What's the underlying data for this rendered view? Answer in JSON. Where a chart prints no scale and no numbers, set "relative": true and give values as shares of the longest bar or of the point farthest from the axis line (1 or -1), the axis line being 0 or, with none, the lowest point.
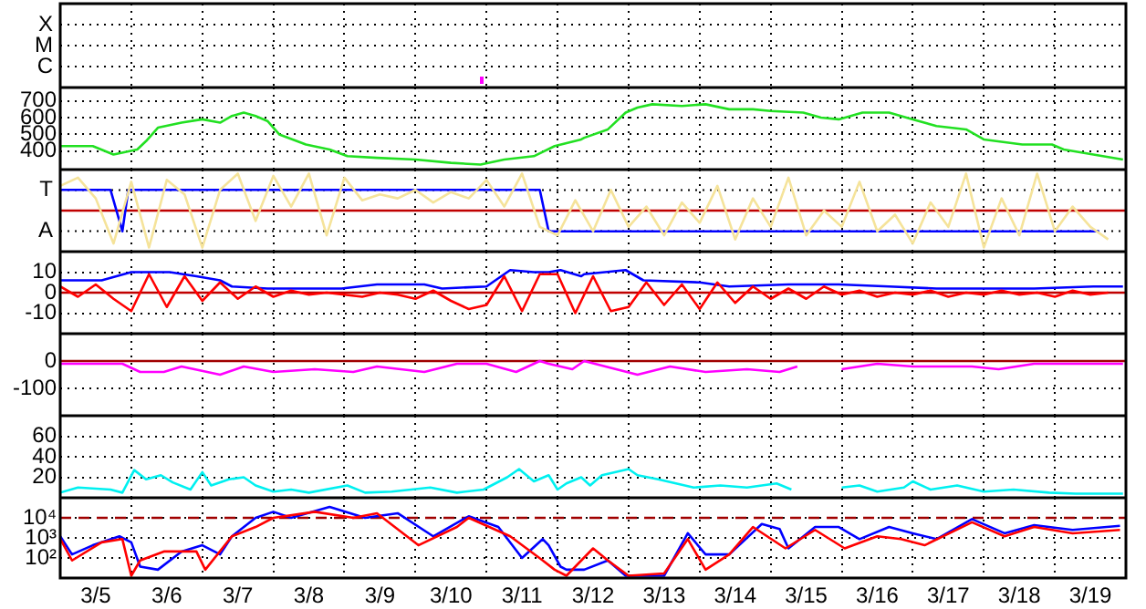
{
  "chart_data": [
    {
      "type": "other",
      "annotations": [
        "X",
        "M",
        "C"
      ]
    },
    {
      "type": "line",
      "grid": true,
      "tick_labels": "y",
      "xlim": [
        "--03-05",
        "--03-20"
      ],
      "ylim": [
        290,
        780
      ],
      "xticks": [
        {
          "value": "--03-06",
          "label": null
        },
        {
          "value": "--03-07",
          "label": null
        },
        {
          "value": "--03-08",
          "label": null
        },
        {
          "value": "--03-09",
          "label": null
        },
        {
          "value": "--03-10",
          "label": null
        },
        {
          "value": "--03-11",
          "label": null
        },
        {
          "value": "--03-12",
          "label": null
        },
        {
          "value": "--03-13",
          "label": null
        },
        {
          "value": "--03-14",
          "label": null
        },
        {
          "value": "--03-15",
          "label": null
        },
        {
          "value": "--03-16",
          "label": null
        },
        {
          "value": "--03-17",
          "label": null
        },
        {
          "value": "--03-18",
          "label": null
        },
        {
          "value": "--03-19",
          "label": null
        }
      ],
      "yticks": [
        400,
        500,
        600,
        700
      ],
      "series": [
        {
          "color": "#22e022",
          "x": [
            "--03-05T00:00",
            "--03-05T11:00",
            "--03-05T18:00",
            "--03-06T02:00",
            "--03-06T05:00",
            "--03-06T09:00",
            "--03-06T17:00",
            "--03-07T00:00",
            "--03-07T06:00",
            "--03-07T10:00",
            "--03-07T14:00",
            "--03-07T18:00",
            "--03-07T22:00",
            "--03-08T02:00",
            "--03-08T11:00",
            "--03-08T19:00",
            "--03-09T01:00",
            "--03-09T11:00",
            "--03-10T00:00",
            "--03-10T12:00",
            "--03-10T22:00",
            "--03-11T06:00",
            "--03-11T16:00",
            "--03-11T23:00",
            "--03-12T08:00",
            "--03-12T09:00",
            "--03-12T17:00",
            "--03-12T23:00",
            "--03-13T03:00",
            "--03-13T08:00",
            "--03-13T18:00",
            "--03-14T02:00",
            "--03-14T10:00",
            "--03-14T18:00",
            "--03-15T00:00",
            "--03-15T11:00",
            "--03-15T17:00",
            "--03-15T23:00",
            "--03-16T07:00",
            "--03-16T16:00",
            "--03-17T00:00",
            "--03-17T08:00",
            "--03-17T18:00",
            "--03-18T00:00",
            "--03-18T13:00",
            "--03-18T23:00",
            "--03-19T03:00",
            "--03-19T13:00",
            "--03-19T23:00"
          ],
          "values": [
            430,
            430,
            380,
            410,
            460,
            540,
            570,
            590,
            570,
            610,
            630,
            610,
            580,
            500,
            440,
            410,
            370,
            360,
            350,
            330,
            320,
            350,
            370,
            430,
            470,
            480,
            530,
            630,
            660,
            680,
            670,
            680,
            650,
            650,
            640,
            630,
            600,
            590,
            630,
            630,
            590,
            550,
            530,
            470,
            440,
            440,
            410,
            380,
            350
          ]
        }
      ]
    },
    {
      "type": "line",
      "relative": true,
      "grid": true,
      "tick_labels": false,
      "xlim": [
        "--03-05",
        "--03-20"
      ],
      "xticks": [
        {
          "value": "--03-06",
          "label": null
        },
        {
          "value": "--03-07",
          "label": null
        },
        {
          "value": "--03-08",
          "label": null
        },
        {
          "value": "--03-09",
          "label": null
        },
        {
          "value": "--03-10",
          "label": null
        },
        {
          "value": "--03-11",
          "label": null
        },
        {
          "value": "--03-12",
          "label": null
        },
        {
          "value": "--03-13",
          "label": null
        },
        {
          "value": "--03-14",
          "label": null
        },
        {
          "value": "--03-15",
          "label": null
        },
        {
          "value": "--03-16",
          "label": null
        },
        {
          "value": "--03-17",
          "label": null
        },
        {
          "value": "--03-18",
          "label": null
        },
        {
          "value": "--03-19",
          "label": null
        }
      ],
      "annotations": [
        "T",
        "A"
      ],
      "ref_lines": [
        {
          "axis": "y",
          "value": 0,
          "color": "#c00000"
        }
      ],
      "series": [
        {
          "color": "#f5e39a",
          "x": [
            "--03-05T00:00",
            "--03-05T06:00",
            "--03-05T12:00",
            "--03-05T18:00",
            "--03-06T00:00",
            "--03-06T06:00",
            "--03-06T12:00",
            "--03-06T18:00",
            "--03-07T00:00",
            "--03-07T06:00",
            "--03-07T12:00",
            "--03-07T18:00",
            "--03-08T00:00",
            "--03-08T06:00",
            "--03-08T12:00",
            "--03-08T18:00",
            "--03-09T00:00",
            "--03-09T06:00",
            "--03-09T12:00",
            "--03-09T18:00",
            "--03-10T00:00",
            "--03-10T06:00",
            "--03-10T12:00",
            "--03-10T18:00",
            "--03-11T00:00",
            "--03-11T06:00",
            "--03-11T12:00",
            "--03-11T18:00",
            "--03-12T00:00",
            "--03-12T06:00",
            "--03-12T12:00",
            "--03-12T18:00",
            "--03-13T00:00",
            "--03-13T06:00",
            "--03-13T12:00",
            "--03-13T18:00",
            "--03-14T00:00",
            "--03-14T06:00",
            "--03-14T12:00",
            "--03-14T18:00",
            "--03-15T00:00",
            "--03-15T06:00",
            "--03-15T12:00",
            "--03-15T18:00",
            "--03-16T00:00",
            "--03-16T06:00",
            "--03-16T12:00",
            "--03-16T18:00",
            "--03-17T00:00",
            "--03-17T06:00",
            "--03-17T12:00",
            "--03-17T18:00",
            "--03-18T00:00",
            "--03-18T06:00",
            "--03-18T12:00",
            "--03-18T18:00",
            "--03-19T00:00",
            "--03-19T06:00",
            "--03-19T12:00",
            "--03-19T18:00"
          ],
          "values": [
            0.67,
            0.89,
            0.33,
            -0.89,
            0.78,
            -1,
            0.83,
            0.44,
            -1,
            0.56,
            1,
            -0.28,
            0.94,
            0.11,
            1,
            -0.67,
            0.89,
            0.28,
            0.44,
            0.33,
            0.56,
            0.22,
            0.5,
            0.33,
            0.83,
            0.11,
            1,
            -0.44,
            -0.67,
            0.28,
            -0.56,
            0.56,
            -0.44,
            0.11,
            -0.67,
            0.22,
            -0.33,
            0.67,
            -0.78,
            0.33,
            -0.44,
            0.89,
            -0.67,
            0,
            -0.44,
            0.78,
            -0.56,
            -0.11,
            -0.89,
            0.22,
            -0.44,
            1,
            -1,
            0.33,
            -0.67,
            1,
            -0.56,
            0.11,
            -0.44,
            -0.78
          ]
        },
        {
          "color": "#0000ff",
          "x": [
            "--03-05T00:00",
            "--03-05T17:00",
            "--03-05T21:00",
            "--03-05T23:00",
            "--03-11T18:00",
            "--03-11T21:00",
            "--03-19T15:00"
          ],
          "values": [
            0.56,
            0.56,
            -0.56,
            0.56,
            0.56,
            -0.56,
            -0.56
          ]
        }
      ]
    },
    {
      "type": "line",
      "grid": true,
      "tick_labels": "y",
      "xlim": [
        "--03-05",
        "--03-20"
      ],
      "ylim": [
        -20,
        20
      ],
      "xticks": [
        {
          "value": "--03-06",
          "label": null
        },
        {
          "value": "--03-07",
          "label": null
        },
        {
          "value": "--03-08",
          "label": null
        },
        {
          "value": "--03-09",
          "label": null
        },
        {
          "value": "--03-10",
          "label": null
        },
        {
          "value": "--03-11",
          "label": null
        },
        {
          "value": "--03-12",
          "label": null
        },
        {
          "value": "--03-13",
          "label": null
        },
        {
          "value": "--03-14",
          "label": null
        },
        {
          "value": "--03-15",
          "label": null
        },
        {
          "value": "--03-16",
          "label": null
        },
        {
          "value": "--03-17",
          "label": null
        },
        {
          "value": "--03-18",
          "label": null
        },
        {
          "value": "--03-19",
          "label": null
        }
      ],
      "yticks": [
        -10,
        0,
        10
      ],
      "ref_lines": [
        {
          "axis": "y",
          "value": 0,
          "color": "#c00000"
        }
      ],
      "series": [
        {
          "color": "#ff0000",
          "x": [
            "--03-05T00:00",
            "--03-05T06:00",
            "--03-05T12:00",
            "--03-05T18:00",
            "--03-06T00:00",
            "--03-06T06:00",
            "--03-06T12:00",
            "--03-06T18:00",
            "--03-07T00:00",
            "--03-07T06:00",
            "--03-07T12:00",
            "--03-07T18:00",
            "--03-08T00:00",
            "--03-08T06:00",
            "--03-08T12:00",
            "--03-08T18:00",
            "--03-09T00:00",
            "--03-09T06:00",
            "--03-09T12:00",
            "--03-09T18:00",
            "--03-10T00:00",
            "--03-10T06:00",
            "--03-10T12:00",
            "--03-10T18:00",
            "--03-11T00:00",
            "--03-11T06:00",
            "--03-11T12:00",
            "--03-11T18:00",
            "--03-12T00:00",
            "--03-12T06:00",
            "--03-12T12:00",
            "--03-12T18:00",
            "--03-13T00:00",
            "--03-13T06:00",
            "--03-13T12:00",
            "--03-13T18:00",
            "--03-14T00:00",
            "--03-14T06:00",
            "--03-14T12:00",
            "--03-14T18:00",
            "--03-15T00:00",
            "--03-15T06:00",
            "--03-15T12:00",
            "--03-15T18:00",
            "--03-16T00:00",
            "--03-16T06:00",
            "--03-16T12:00",
            "--03-16T18:00",
            "--03-17T00:00",
            "--03-17T06:00",
            "--03-17T12:00",
            "--03-17T18:00",
            "--03-18T00:00",
            "--03-18T06:00",
            "--03-18T12:00",
            "--03-18T18:00",
            "--03-19T00:00",
            "--03-19T06:00",
            "--03-19T12:00",
            "--03-19T18:00"
          ],
          "values": [
            3,
            -2,
            4,
            -3,
            -9,
            9,
            -7,
            8,
            -4,
            5,
            -3,
            3,
            -2,
            1,
            -1,
            0,
            -1,
            -2,
            0,
            -1,
            -3,
            1,
            -4,
            -8,
            -6,
            8,
            -9,
            9,
            9,
            -10,
            8,
            -9,
            -7,
            5,
            -6,
            4,
            -8,
            5,
            -5,
            3,
            -3,
            2,
            -3,
            3,
            -1,
            1,
            -2,
            0,
            -1,
            1,
            -2,
            0,
            -1,
            1,
            -1,
            0,
            -2,
            1,
            -1,
            0
          ]
        },
        {
          "color": "#0000ff",
          "x": [
            "--03-05T00:00",
            "--03-05T14:00",
            "--03-06T00:00",
            "--03-06T05:00",
            "--03-06T13:00",
            "--03-06T22:00",
            "--03-07T06:00",
            "--03-07T10:00",
            "--03-07T22:00",
            "--03-08T06:00",
            "--03-08T23:00",
            "--03-09T11:00",
            "--03-10T03:00",
            "--03-10T09:00",
            "--03-11T00:00",
            "--03-11T08:00",
            "--03-11T16:00",
            "--03-11T21:00",
            "--03-12T01:00",
            "--03-12T08:00",
            "--03-12T09:00",
            "--03-12T23:00",
            "--03-13T05:00",
            "--03-14T00:00",
            "--03-14T10:00",
            "--03-15T06:00",
            "--03-15T23:00",
            "--03-16T16:00",
            "--03-17T08:00",
            "--03-18T00:00",
            "--03-18T17:00",
            "--03-19T13:00",
            "--03-19T23:00"
          ],
          "values": [
            6,
            6,
            10,
            10,
            10,
            8,
            6,
            3,
            2,
            2,
            2,
            4,
            4,
            2,
            3,
            11,
            10,
            10,
            11,
            8,
            9,
            11,
            6,
            5,
            3,
            4,
            4,
            3,
            2,
            2,
            2,
            3,
            3
          ]
        }
      ]
    },
    {
      "type": "line",
      "grid": true,
      "tick_labels": "y",
      "xlim": [
        "--03-05",
        "--03-20"
      ],
      "ylim": [
        -200,
        100
      ],
      "xticks": [
        {
          "value": "--03-06",
          "label": null
        },
        {
          "value": "--03-07",
          "label": null
        },
        {
          "value": "--03-08",
          "label": null
        },
        {
          "value": "--03-09",
          "label": null
        },
        {
          "value": "--03-10",
          "label": null
        },
        {
          "value": "--03-11",
          "label": null
        },
        {
          "value": "--03-12",
          "label": null
        },
        {
          "value": "--03-13",
          "label": null
        },
        {
          "value": "--03-14",
          "label": null
        },
        {
          "value": "--03-15",
          "label": null
        },
        {
          "value": "--03-16",
          "label": null
        },
        {
          "value": "--03-17",
          "label": null
        },
        {
          "value": "--03-18",
          "label": null
        },
        {
          "value": "--03-19",
          "label": null
        }
      ],
      "yticks": [
        -100,
        0
      ],
      "ref_lines": [
        {
          "axis": "y",
          "value": 0,
          "color": "#a00000"
        }
      ],
      "series": [
        {
          "color": "#ff00ff",
          "x": [
            "--03-05T00:00",
            "--03-05T21:00",
            "--03-06T03:00",
            "--03-06T11:00",
            "--03-06T17:00",
            "--03-07T06:00",
            "--03-07T14:00",
            "--03-08T00:00",
            "--03-08T14:00",
            "--03-09T03:00",
            "--03-09T11:00",
            "--03-10T03:00",
            "--03-10T14:00",
            "--03-11T00:00",
            "--03-11T10:00",
            "--03-11T18:00",
            "--03-11T21:00",
            "--03-12T05:00",
            "--03-12T09:00",
            "--03-13T03:00",
            "--03-13T14:00",
            "--03-14T02:00",
            "--03-14T16:00",
            "--03-15T03:00",
            "--03-15T09:00",
            "--03-15T17:00",
            "--03-16T00:00",
            "--03-16T12:00",
            "--03-17T00:00",
            "--03-17T20:00",
            "--03-18T05:00",
            "--03-18T17:00",
            "--03-19T03:00",
            "--03-19T23:00"
          ],
          "values": [
            -10,
            -10,
            -40,
            -40,
            -20,
            -50,
            -20,
            -40,
            -30,
            -40,
            -20,
            -40,
            -10,
            -10,
            -40,
            0,
            -10,
            -30,
            0,
            -50,
            -20,
            -40,
            -30,
            -40,
            -20,
            null,
            -30,
            -10,
            -20,
            -20,
            -30,
            -10,
            -10,
            -10
          ]
        }
      ]
    },
    {
      "type": "line",
      "grid": true,
      "tick_labels": "y",
      "xlim": [
        "--03-05",
        "--03-20"
      ],
      "ylim": [
        0,
        80
      ],
      "xticks": [
        {
          "value": "--03-06",
          "label": null
        },
        {
          "value": "--03-07",
          "label": null
        },
        {
          "value": "--03-08",
          "label": null
        },
        {
          "value": "--03-09",
          "label": null
        },
        {
          "value": "--03-10",
          "label": null
        },
        {
          "value": "--03-11",
          "label": null
        },
        {
          "value": "--03-12",
          "label": null
        },
        {
          "value": "--03-13",
          "label": null
        },
        {
          "value": "--03-14",
          "label": null
        },
        {
          "value": "--03-15",
          "label": null
        },
        {
          "value": "--03-16",
          "label": null
        },
        {
          "value": "--03-17",
          "label": null
        },
        {
          "value": "--03-18",
          "label": null
        },
        {
          "value": "--03-19",
          "label": null
        }
      ],
      "yticks": [
        20,
        40,
        60
      ],
      "series": [
        {
          "color": "#00f0f0",
          "x": [
            "--03-05T00:00",
            "--03-05T06:00",
            "--03-05T17:00",
            "--03-05T21:00",
            "--03-06T01:00",
            "--03-06T05:00",
            "--03-06T10:00",
            "--03-06T14:00",
            "--03-06T20:00",
            "--03-07T00:00",
            "--03-07T03:00",
            "--03-07T09:00",
            "--03-07T14:00",
            "--03-07T18:00",
            "--03-08T00:00",
            "--03-08T06:00",
            "--03-08T12:00",
            "--03-09T01:00",
            "--03-09T07:00",
            "--03-09T16:00",
            "--03-10T05:00",
            "--03-10T14:00",
            "--03-10T23:00",
            "--03-11T07:00",
            "--03-11T11:00",
            "--03-11T16:00",
            "--03-11T21:00",
            "--03-12T00:00",
            "--03-12T03:00",
            "--03-12T08:00",
            "--03-12T11:00",
            "--03-12T15:00",
            "--03-13T00:00",
            "--03-13T03:00",
            "--03-13T10:00",
            "--03-13T16:00",
            "--03-13T22:00",
            "--03-14T07:00",
            "--03-14T16:00",
            "--03-15T02:00",
            "--03-15T07:00",
            "--03-15T17:00",
            "--03-16T00:00",
            "--03-16T06:00",
            "--03-16T12:00",
            "--03-16T21:00",
            "--03-17T00:00",
            "--03-17T06:00",
            "--03-17T15:00",
            "--03-18T00:00",
            "--03-18T10:00",
            "--03-18T22:00",
            "--03-19T07:00",
            "--03-19T23:00"
          ],
          "values": [
            5,
            10,
            8,
            5,
            27,
            18,
            22,
            15,
            8,
            25,
            12,
            18,
            20,
            12,
            6,
            8,
            5,
            12,
            5,
            6,
            10,
            5,
            8,
            20,
            28,
            16,
            22,
            8,
            14,
            20,
            12,
            22,
            28,
            22,
            18,
            14,
            10,
            12,
            10,
            14,
            8,
            null,
            10,
            12,
            6,
            10,
            16,
            8,
            12,
            6,
            8,
            5,
            4,
            4
          ]
        }
      ]
    },
    {
      "type": "line",
      "log": "y",
      "grid": true,
      "xlim": [
        "--03-05",
        "--03-20"
      ],
      "ylim": [
        10,
        100000
      ],
      "xticks": [
        {
          "value": "--03-05T12:00",
          "label": "3/5"
        },
        {
          "value": "--03-06",
          "label": null
        },
        {
          "value": "--03-06T12:00",
          "label": "3/6"
        },
        {
          "value": "--03-07",
          "label": null
        },
        {
          "value": "--03-07T12:00",
          "label": "3/7"
        },
        {
          "value": "--03-08",
          "label": null
        },
        {
          "value": "--03-08T12:00",
          "label": "3/8"
        },
        {
          "value": "--03-09",
          "label": null
        },
        {
          "value": "--03-09T12:00",
          "label": "3/9"
        },
        {
          "value": "--03-10",
          "label": null
        },
        {
          "value": "--03-10T12:00",
          "label": "3/10"
        },
        {
          "value": "--03-11",
          "label": null
        },
        {
          "value": "--03-11T12:00",
          "label": "3/11"
        },
        {
          "value": "--03-12",
          "label": null
        },
        {
          "value": "--03-12T12:00",
          "label": "3/12"
        },
        {
          "value": "--03-13",
          "label": null
        },
        {
          "value": "--03-13T12:00",
          "label": "3/13"
        },
        {
          "value": "--03-14",
          "label": null
        },
        {
          "value": "--03-14T12:00",
          "label": "3/14"
        },
        {
          "value": "--03-15",
          "label": null
        },
        {
          "value": "--03-15T12:00",
          "label": "3/15"
        },
        {
          "value": "--03-16",
          "label": null
        },
        {
          "value": "--03-16T12:00",
          "label": "3/16"
        },
        {
          "value": "--03-17",
          "label": null
        },
        {
          "value": "--03-17T12:00",
          "label": "3/17"
        },
        {
          "value": "--03-18",
          "label": null
        },
        {
          "value": "--03-18T12:00",
          "label": "3/18"
        },
        {
          "value": "--03-19",
          "label": null
        },
        {
          "value": "--03-19T12:00",
          "label": "3/19"
        }
      ],
      "yticks": [
        {
          "value": 100,
          "label": "10²"
        },
        {
          "value": 1000,
          "label": "10³"
        },
        {
          "value": 10000,
          "label": "10⁴"
        }
      ],
      "ref_lines": [
        {
          "axis": "y",
          "value": 10000,
          "color": "#a00000",
          "line_style": "dashed"
        }
      ],
      "series": [
        {
          "color": "#ff0000",
          "x": [
            "--03-05T00:00",
            "--03-05T04:00",
            "--03-05T14:00",
            "--03-05T21:00",
            "--03-06T00:00",
            "--03-06T03:00",
            "--03-06T11:00",
            "--03-06T22:00",
            "--03-07T01:00",
            "--03-07T10:00",
            "--03-07T18:00",
            "--03-08T00:00",
            "--03-08T14:00",
            "--03-09T03:00",
            "--03-09T11:00",
            "--03-10T01:00",
            "--03-10T14:00",
            "--03-10T18:00",
            "--03-11T08:00",
            "--03-11T19:00",
            "--03-11T23:00",
            "--03-12T03:00",
            "--03-12T12:00",
            "--03-12T17:00",
            "--03-13T00:00",
            "--03-13T12:00",
            "--03-13T20:00",
            "--03-14T02:00",
            "--03-14T10:00",
            "--03-14T18:00",
            "--03-15T05:00",
            "--03-15T15:00",
            "--03-16T01:00",
            "--03-16T12:00",
            "--03-16T20:00",
            "--03-17T04:00",
            "--03-17T20:00",
            "--03-18T07:00",
            "--03-18T17:00",
            "--03-19T06:00",
            "--03-19T22:00"
          ],
          "values": [
            900,
            75,
            600,
            870,
            13,
            75,
            210,
            210,
            26,
            1200,
            3500,
            10000,
            20000,
            10000,
            17000,
            430,
            3500,
            10000,
            1200,
            75,
            26,
            13,
            300,
            75,
            13,
            17,
            870,
            26,
            150,
            3500,
            300,
            2500,
            300,
            1200,
            870,
            430,
            6000,
            1200,
            3500,
            1700,
            2500
          ]
        },
        {
          "color": "#0000ff",
          "x": [
            "--03-05T00:00",
            "--03-05T04:00",
            "--03-05T11:00",
            "--03-05T20:00",
            "--03-06T00:00",
            "--03-06T03:00",
            "--03-06T09:00",
            "--03-06T17:00",
            "--03-07T00:00",
            "--03-07T06:00",
            "--03-07T10:00",
            "--03-07T18:00",
            "--03-08T00:00",
            "--03-08T06:00",
            "--03-08T19:00",
            "--03-09T07:00",
            "--03-09T18:00",
            "--03-10T06:00",
            "--03-10T18:00",
            "--03-11T04:00",
            "--03-11T12:00",
            "--03-11T19:00",
            "--03-11T21:00",
            "--03-12T01:00",
            "--03-12T03:00",
            "--03-12T09:00",
            "--03-12T17:00",
            "--03-12T23:00",
            "--03-13T12:00",
            "--03-13T20:00",
            "--03-14T02:00",
            "--03-14T10:00",
            "--03-14T21:00",
            "--03-15T03:00",
            "--03-15T06:00",
            "--03-15T15:00",
            "--03-15T23:00",
            "--03-16T06:00",
            "--03-16T16:00",
            "--03-17T00:00",
            "--03-17T08:00",
            "--03-17T20:00",
            "--03-18T07:00",
            "--03-18T17:00",
            "--03-19T06:00",
            "--03-19T22:00"
          ],
          "values": [
            1200,
            150,
            430,
            1200,
            600,
            37,
            26,
            210,
            430,
            150,
            1200,
            10000,
            20000,
            10000,
            35000,
            10000,
            17000,
            1200,
            12000,
            3500,
            100,
            870,
            430,
            37,
            26,
            26,
            75,
            13,
            13,
            1700,
            150,
            150,
            4900,
            2800,
            300,
            3500,
            3500,
            870,
            3500,
            1700,
            870,
            8700,
            1700,
            4300,
            2500,
            4000
          ]
        }
      ]
    }
  ]
}
